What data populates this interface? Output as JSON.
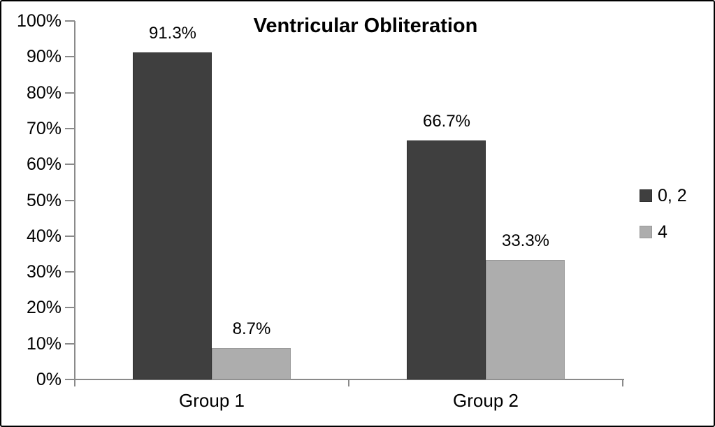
{
  "chart_data": {
    "type": "bar",
    "title": "Ventricular Obliteration",
    "categories": [
      "Group 1",
      "Group 2"
    ],
    "series": [
      {
        "name": "0, 2",
        "color": "#3f3f3f",
        "border_color": "#2e2e2e",
        "values": [
          91.3,
          66.7
        ],
        "labels": [
          "91.3%",
          "66.7%"
        ]
      },
      {
        "name": "4",
        "color": "#adadad",
        "border_color": "#989898",
        "values": [
          8.7,
          33.3
        ],
        "labels": [
          "8.7%",
          "33.3%"
        ]
      }
    ],
    "xlabel": "",
    "ylabel": "",
    "ylim": [
      0,
      100
    ],
    "ytick_step": 10,
    "ytick_labels": [
      "0%",
      "10%",
      "20%",
      "30%",
      "40%",
      "50%",
      "60%",
      "70%",
      "80%",
      "90%",
      "100%"
    ],
    "grid": false,
    "legend_position": "right",
    "colors": {
      "axis": "#8a8a8a",
      "text": "#000000",
      "background": "#ffffff",
      "frame_border": "#000000"
    }
  }
}
